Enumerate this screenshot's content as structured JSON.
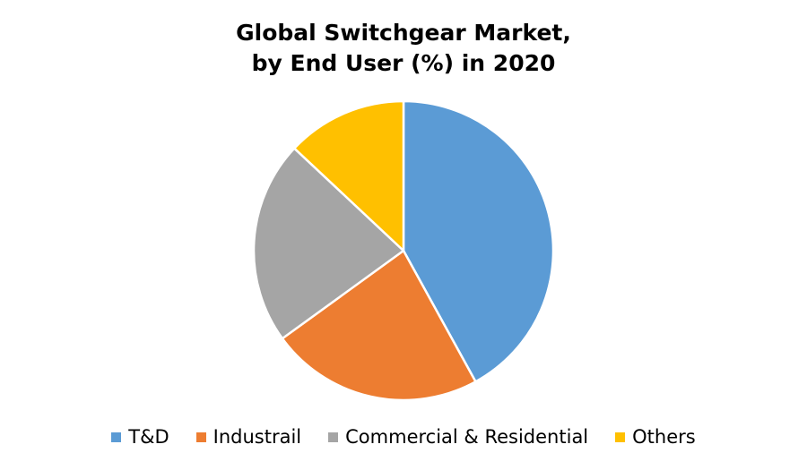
{
  "chart_data": {
    "type": "pie",
    "title": "Global Switchgear Market,",
    "subtitle": "by End User (%) in 2020",
    "categories": [
      "T&D",
      "Industrail",
      "Commercial & Residential",
      "Others"
    ],
    "values": [
      42,
      23,
      22,
      13
    ],
    "colors": [
      "#5B9BD5",
      "#ED7D31",
      "#A5A5A5",
      "#FFC000"
    ],
    "legend_position": "bottom",
    "start_angle": "top",
    "direction": "clockwise"
  }
}
